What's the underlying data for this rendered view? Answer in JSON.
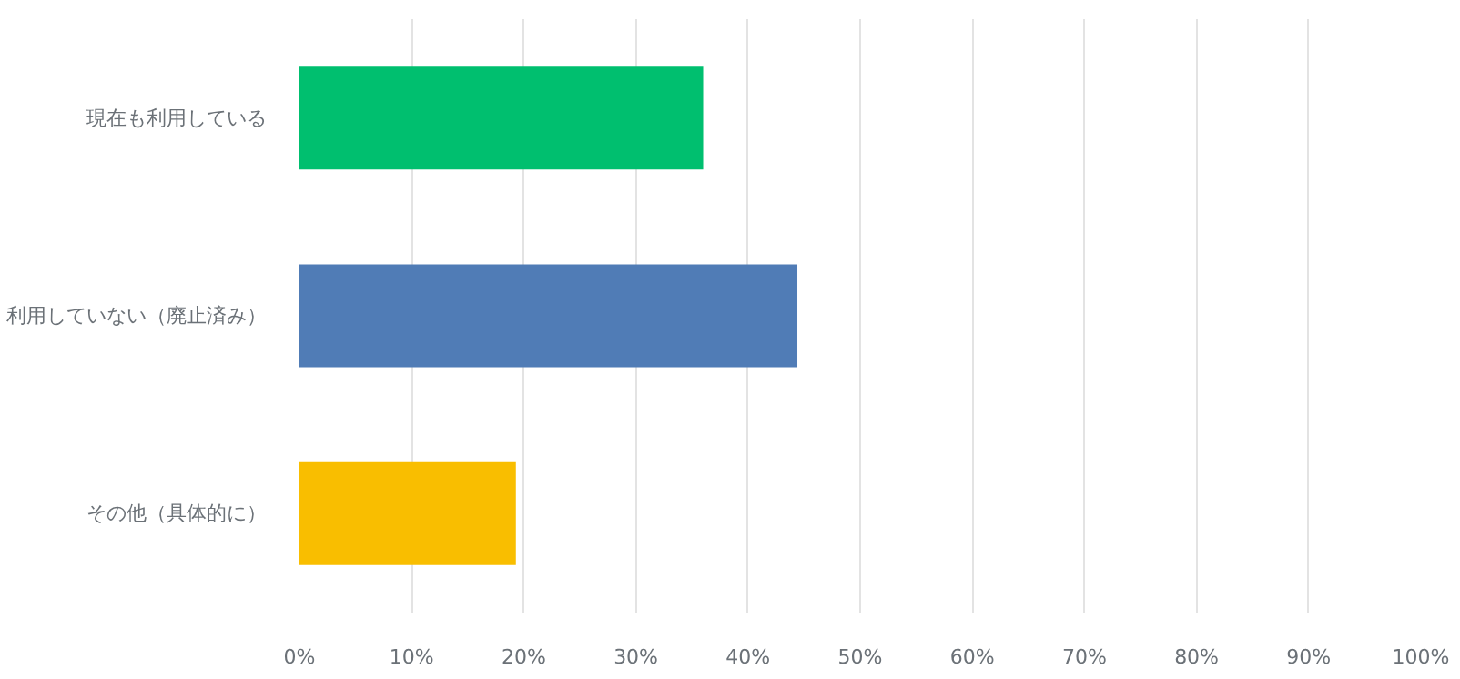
{
  "chart_data": {
    "type": "bar",
    "orientation": "horizontal",
    "categories": [
      "現在も利用している",
      "利用していない（廃止済み）",
      "その他（具体的に）"
    ],
    "values": [
      36.0,
      44.4,
      19.3
    ],
    "colors": [
      "#00bf6f",
      "#507cb6",
      "#f9be00"
    ],
    "xlim": [
      0,
      100
    ],
    "xticks": [
      {
        "value": 0,
        "label": "0%"
      },
      {
        "value": 10,
        "label": "10%"
      },
      {
        "value": 20,
        "label": "20%"
      },
      {
        "value": 30,
        "label": "30%"
      },
      {
        "value": 40,
        "label": "40%"
      },
      {
        "value": 50,
        "label": "50%"
      },
      {
        "value": 60,
        "label": "60%"
      },
      {
        "value": 70,
        "label": "70%"
      },
      {
        "value": 80,
        "label": "80%"
      },
      {
        "value": 90,
        "label": "90%"
      },
      {
        "value": 100,
        "label": "100%"
      }
    ],
    "grid": "x"
  }
}
